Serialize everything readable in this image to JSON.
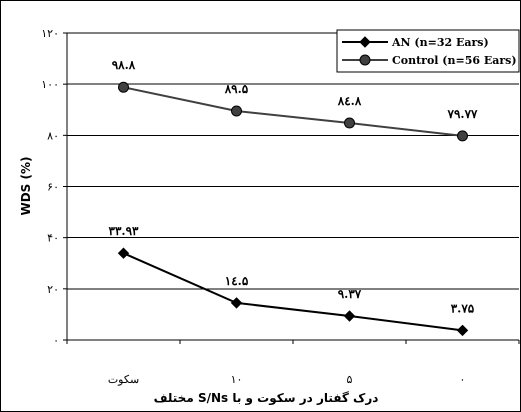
{
  "chart_data": {
    "type": "line",
    "title": "",
    "xlabel": "درک گفتار در سکوت و با S/Ns مختلف",
    "ylabel": "WDS (%)",
    "ylim": [
      0,
      120
    ],
    "yticks": [
      0,
      20,
      40,
      60,
      80,
      100,
      120
    ],
    "ytick_labels": [
      "۰",
      "۲۰",
      "۴۰",
      "۶۰",
      "۸۰",
      "۱۰۰",
      "۱۲۰"
    ],
    "categories": [
      "سکوت",
      "۱۰",
      "۵",
      "۰"
    ],
    "grid": "horizontal",
    "legend_position": "top-right",
    "series": [
      {
        "name": "AN (n=32 Ears)",
        "marker": "diamond",
        "color": "#000000",
        "values": [
          33.93,
          14.5,
          9.37,
          3.75
        ],
        "labels": [
          "۳۳.۹۳",
          "۱٤.۵",
          "۹.۳۷",
          "۳.۷۵"
        ]
      },
      {
        "name": "Control (n=56 Ears)",
        "marker": "circle",
        "color": "#404040",
        "values": [
          98.8,
          89.5,
          84.8,
          79.77
        ],
        "labels": [
          "۹۸.۸",
          "۸۹.۵",
          "۸٤.۸",
          "۷۹.۷۷"
        ]
      }
    ]
  }
}
